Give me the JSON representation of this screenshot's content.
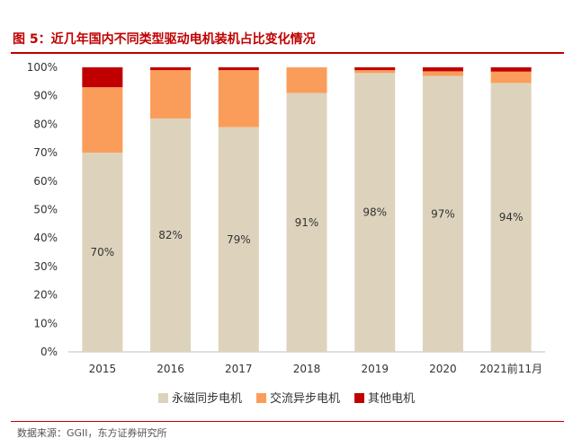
{
  "header": {
    "title": "图 5：近几年国内不同类型驱动电机装机占比变化情况"
  },
  "source": "数据来源：GGII，东方证券研究所",
  "colors": {
    "accent": "#c00000"
  },
  "chart_data": {
    "type": "bar",
    "stacked": true,
    "title": "",
    "xlabel": "",
    "ylabel": "",
    "categories": [
      "2015",
      "2016",
      "2017",
      "2018",
      "2019",
      "2020",
      "2021前11月"
    ],
    "ylim": [
      0,
      100
    ],
    "yticks": [
      "0%",
      "10%",
      "20%",
      "30%",
      "40%",
      "50%",
      "60%",
      "70%",
      "80%",
      "90%",
      "100%"
    ],
    "grid": false,
    "legend_position": "bottom",
    "series": [
      {
        "name": "永磁同步电机",
        "color": "#ddd3bd",
        "values": [
          70,
          82,
          79,
          91,
          98,
          97,
          94.5
        ],
        "labels": [
          "70%",
          "82%",
          "79%",
          "91%",
          "98%",
          "97%",
          "94%"
        ]
      },
      {
        "name": "交流异步电机",
        "color": "#fb9d5a",
        "values": [
          23,
          17,
          20,
          9,
          1,
          1.6,
          4
        ]
      },
      {
        "name": "其他电机",
        "color": "#c00000",
        "values": [
          7,
          1,
          1,
          0,
          1,
          1.4,
          1.5
        ]
      }
    ]
  }
}
